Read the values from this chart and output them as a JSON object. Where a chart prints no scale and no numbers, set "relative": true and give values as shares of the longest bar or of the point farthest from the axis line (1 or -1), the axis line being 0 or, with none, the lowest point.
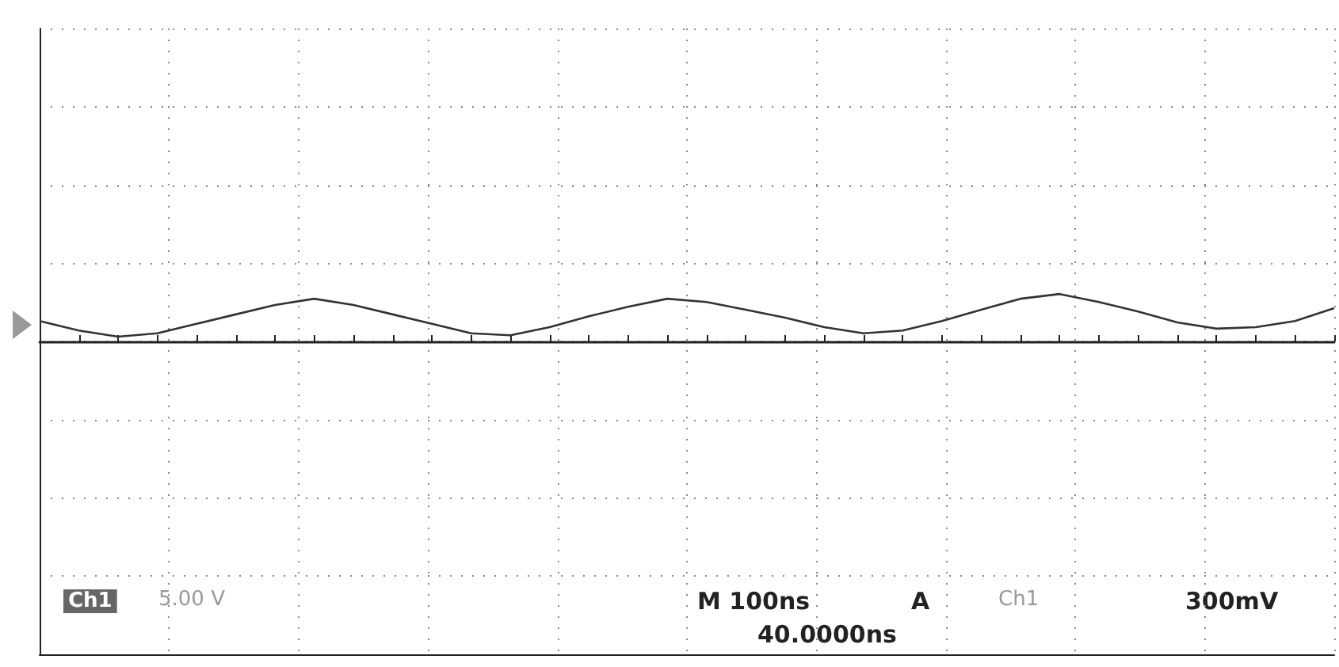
{
  "chart_data": {
    "type": "line",
    "relative": true,
    "color": "#333333",
    "grid": true,
    "marker": "none",
    "line_style": "solid",
    "categories": [
      null,
      null,
      null,
      null,
      null,
      null,
      null,
      null,
      null,
      null,
      null,
      null,
      null,
      null,
      null,
      null,
      null,
      null,
      null,
      null,
      null,
      null,
      null,
      null,
      null,
      null,
      null,
      null,
      null,
      null,
      null,
      null,
      null,
      null
    ],
    "values": [
      0.43,
      0.23,
      0.1,
      0.17,
      0.37,
      0.57,
      0.77,
      0.9,
      0.77,
      0.57,
      0.37,
      0.17,
      0.13,
      0.3,
      0.53,
      0.73,
      0.9,
      0.83,
      0.67,
      0.5,
      0.3,
      0.17,
      0.23,
      0.43,
      0.67,
      0.9,
      1,
      0.83,
      0.63,
      0.4,
      0.27,
      0.3,
      0.43,
      0.7
    ],
    "annotations": [
      "Ch1",
      "5.00 V",
      "M 100ns",
      "A",
      "Ch1",
      "300mV",
      "40.0000ns"
    ]
  }
}
